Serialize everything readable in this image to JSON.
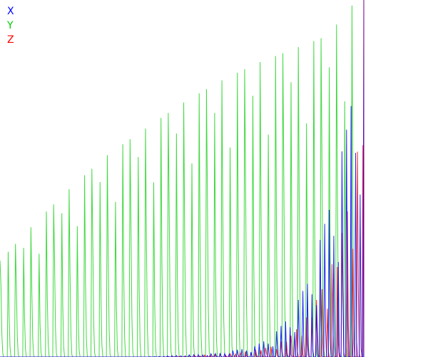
{
  "chart_data": {
    "type": "line",
    "title": "",
    "xlabel": "",
    "ylabel": "",
    "grid": false,
    "legend_placement": "top-left",
    "x_range": [
      0,
      100
    ],
    "y_range": [
      0,
      100
    ],
    "samples_per_unit": 4,
    "series": [
      {
        "name": "X",
        "color": "#0000ff",
        "spike_x_start": 40,
        "spike_x_end": 100,
        "spike_period": 1.2,
        "envelope_x": [
          40,
          60,
          70,
          75,
          80,
          85,
          90,
          95,
          98,
          100
        ],
        "envelope_y": [
          0,
          1,
          3,
          6,
          12,
          22,
          40,
          62,
          82,
          100
        ]
      },
      {
        "name": "Y",
        "color": "#00cc00",
        "spike_x_start": 0,
        "spike_x_end": 98,
        "spike_period": 2.1,
        "envelope_x": [
          0,
          10,
          20,
          30,
          40,
          50,
          60,
          70,
          80,
          90,
          98
        ],
        "envelope_y": [
          27,
          38,
          48,
          57,
          64,
          71,
          77,
          82,
          86,
          90,
          100
        ]
      },
      {
        "name": "Z",
        "color": "#ff0000",
        "spike_x_start": 45,
        "spike_x_end": 100,
        "spike_period": 1.4,
        "envelope_x": [
          45,
          65,
          75,
          80,
          85,
          90,
          95,
          98,
          100
        ],
        "envelope_y": [
          0,
          1,
          3,
          6,
          12,
          22,
          38,
          55,
          75
        ]
      }
    ]
  }
}
